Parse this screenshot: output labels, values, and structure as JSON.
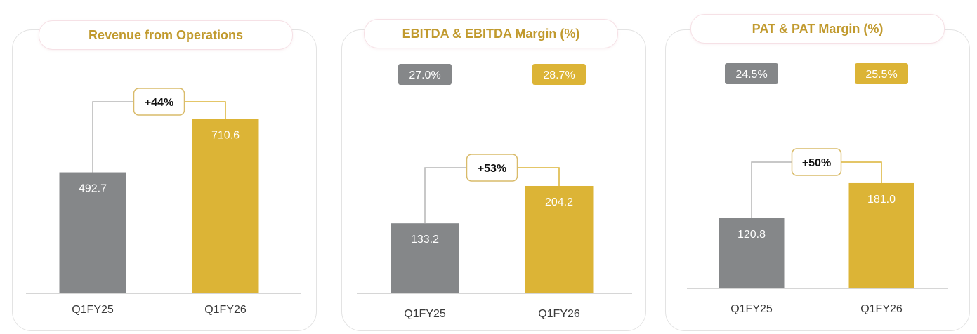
{
  "colors": {
    "prior": "#858789",
    "current": "#dcb436",
    "bracket_prior": "#b5b5b5",
    "bracket_current": "#dcb436",
    "growth_box_border": "#d9bb6a",
    "axis": "#bdbdbd",
    "title": "#c19a2e"
  },
  "chart_data": [
    {
      "type": "bar",
      "title": "Revenue from Operations",
      "categories": [
        "Q1FY25",
        "Q1FY26"
      ],
      "values": [
        492.7,
        710.6
      ],
      "value_labels": [
        "492.7",
        "710.6"
      ],
      "growth_label": "+44%",
      "margins": []
    },
    {
      "type": "bar",
      "title": "EBITDA & EBITDA Margin (%)",
      "categories": [
        "Q1FY25",
        "Q1FY26"
      ],
      "values": [
        133.2,
        204.2
      ],
      "value_labels": [
        "133.2",
        "204.2"
      ],
      "growth_label": "+53%",
      "margins": [
        "27.0%",
        "28.7%"
      ]
    },
    {
      "type": "bar",
      "title": "PAT & PAT Margin (%)",
      "categories": [
        "Q1FY25",
        "Q1FY26"
      ],
      "values": [
        120.8,
        181.0
      ],
      "value_labels": [
        "120.8",
        "181.0"
      ],
      "growth_label": "+50%",
      "margins": [
        "24.5%",
        "25.5%"
      ]
    }
  ]
}
